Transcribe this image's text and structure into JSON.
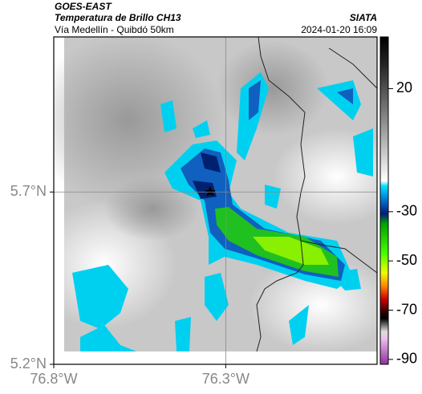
{
  "header": {
    "source": "GOES-EAST",
    "title": "Temperatura de Brillo CH13",
    "subtitle": "Vía Medellín - Quibdó 50km",
    "brand": "SIATA",
    "timestamp": "2024-01-20 16:09"
  },
  "map": {
    "xlim": [
      -76.8,
      -75.86
    ],
    "ylim": [
      5.2,
      6.15
    ],
    "xticks": [
      {
        "value": -76.8,
        "label": "76.8°W"
      },
      {
        "value": -76.3,
        "label": "76.3°W"
      }
    ],
    "yticks": [
      {
        "value": 5.7,
        "label": "5.7°N"
      },
      {
        "value": 5.2,
        "label": "5.2°N"
      }
    ]
  },
  "colorbar": {
    "lim": [
      -92,
      41
    ],
    "ticks": [
      20,
      -30,
      -50,
      -70,
      -90
    ]
  }
}
